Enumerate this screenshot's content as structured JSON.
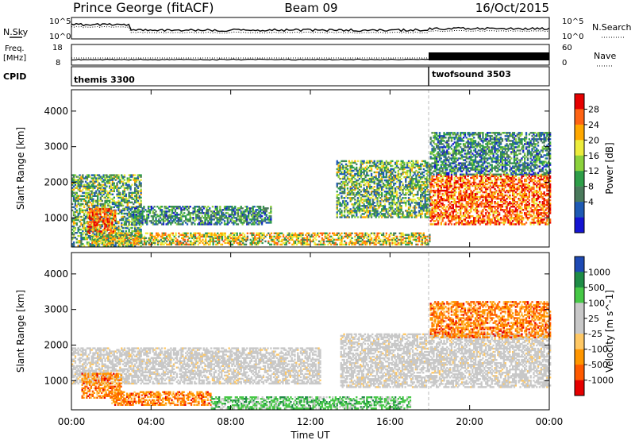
{
  "header": {
    "station": "Prince George (fitACF)",
    "beam": "Beam 09",
    "date": "16/Oct/2015"
  },
  "noise_panel": {
    "left_label": "N.Sky",
    "right_label": "N.Search",
    "left_ticks": [
      "10^5",
      "10^0"
    ],
    "right_ticks": [
      "10^5",
      "10^0"
    ]
  },
  "freq_panel": {
    "left_label_1": "Freq.",
    "left_label_2": "[MHz]",
    "right_label": "Nave",
    "left_ticks": [
      "18",
      "8"
    ],
    "right_ticks": [
      "60",
      "0"
    ]
  },
  "cpid_panel": {
    "label": "CPID",
    "modes": [
      {
        "name": "themis 3300",
        "start_hour": 0
      },
      {
        "name": "twofsound 3503",
        "start_hour": 18
      }
    ]
  },
  "x_axis": {
    "label": "Time UT",
    "ticks": [
      "00:00",
      "04:00",
      "08:00",
      "12:00",
      "16:00",
      "20:00",
      "00:00"
    ]
  },
  "chart_data": [
    {
      "type": "heatmap",
      "name": "power-panel",
      "ylabel": "Slant Range [km]",
      "xlim": [
        0,
        24
      ],
      "ylim": [
        180,
        4600
      ],
      "yticks": [
        "1000",
        "2000",
        "3000",
        "4000"
      ],
      "mode_change_hour": 18,
      "colorbar": {
        "label": "Power [dB]",
        "ticks": [
          "28",
          "24",
          "20",
          "16",
          "12",
          "8",
          "4"
        ],
        "colors": [
          "#1414d2",
          "#1e5ab4",
          "#4a7a5c",
          "#2e9e48",
          "#8cd23c",
          "#ecec3c",
          "#ffa800",
          "#ff6414",
          "#e60000"
        ]
      },
      "bands": [
        {
          "t0": 0.0,
          "t1": 3.5,
          "r0": 200,
          "r1": 2200,
          "level": "mixed"
        },
        {
          "t0": 0.8,
          "t1": 2.2,
          "r0": 550,
          "r1": 1250,
          "level": "high"
        },
        {
          "t0": 1.0,
          "t1": 18.0,
          "r0": 230,
          "r1": 550,
          "level": "medium"
        },
        {
          "t0": 3.0,
          "t1": 10.0,
          "r0": 800,
          "r1": 1300,
          "level": "low"
        },
        {
          "t0": 13.3,
          "t1": 18.0,
          "r0": 1000,
          "r1": 2600,
          "level": "mixed"
        },
        {
          "t0": 18.0,
          "t1": 24.0,
          "r0": 800,
          "r1": 2200,
          "level": "high"
        },
        {
          "t0": 18.0,
          "t1": 24.0,
          "r0": 2200,
          "r1": 3400,
          "level": "low"
        }
      ]
    },
    {
      "type": "heatmap",
      "name": "velocity-panel",
      "ylabel": "Slant Range [km]",
      "xlim": [
        0,
        24
      ],
      "ylim": [
        180,
        4600
      ],
      "yticks": [
        "1000",
        "2000",
        "3000",
        "4000"
      ],
      "mode_change_hour": 18,
      "colorbar": {
        "label": "Velocity [m s^-1]",
        "ticks": [
          "1000",
          "500",
          "100",
          "25",
          "-25",
          "-100",
          "-500",
          "-1000"
        ],
        "colors": [
          "#e60000",
          "#ff5a00",
          "#ff9600",
          "#ffc864",
          "#c8c8c8",
          "#c8c8c8",
          "#46c846",
          "#1e8c46",
          "#1e4ab4"
        ]
      },
      "bands": [
        {
          "t0": 0.0,
          "t1": 12.5,
          "r0": 900,
          "r1": 1900,
          "level": "ground"
        },
        {
          "t0": 0.5,
          "t1": 2.5,
          "r0": 500,
          "r1": 1200,
          "level": "away"
        },
        {
          "t0": 2.0,
          "t1": 7.0,
          "r0": 300,
          "r1": 700,
          "level": "away"
        },
        {
          "t0": 7.0,
          "t1": 17.0,
          "r0": 200,
          "r1": 550,
          "level": "toward"
        },
        {
          "t0": 13.5,
          "t1": 24.0,
          "r0": 800,
          "r1": 2300,
          "level": "ground"
        },
        {
          "t0": 18.0,
          "t1": 24.0,
          "r0": 2200,
          "r1": 3200,
          "level": "away"
        }
      ]
    }
  ]
}
